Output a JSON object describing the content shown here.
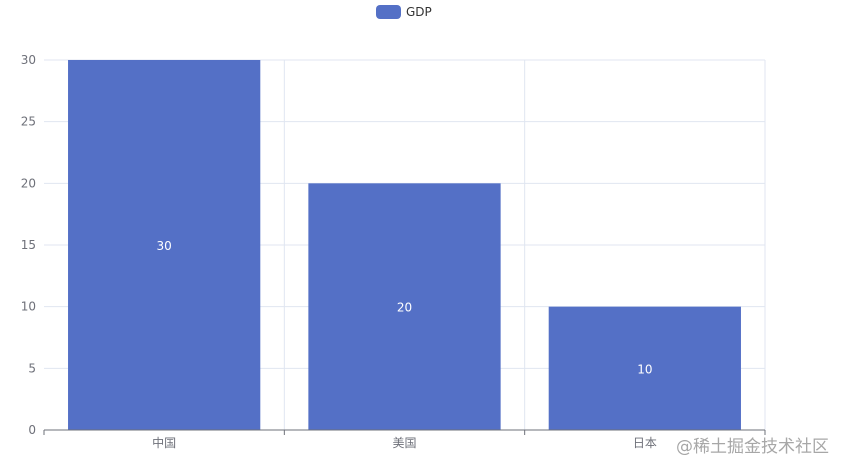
{
  "chart_data": {
    "type": "bar",
    "legend": {
      "placement": "top-center",
      "entries": [
        {
          "name": "GDP",
          "color": "#5470c6"
        }
      ]
    },
    "categories": [
      "中国",
      "美国",
      "日本"
    ],
    "series": [
      {
        "name": "GDP",
        "values": [
          30,
          20,
          10
        ],
        "color": "#5470c6"
      }
    ],
    "ylim": [
      0,
      30
    ],
    "yticks": [
      0,
      5,
      10,
      15,
      20,
      25,
      30
    ],
    "grid": true,
    "data_labels": true
  },
  "watermark": "@稀土掘金技术社区"
}
